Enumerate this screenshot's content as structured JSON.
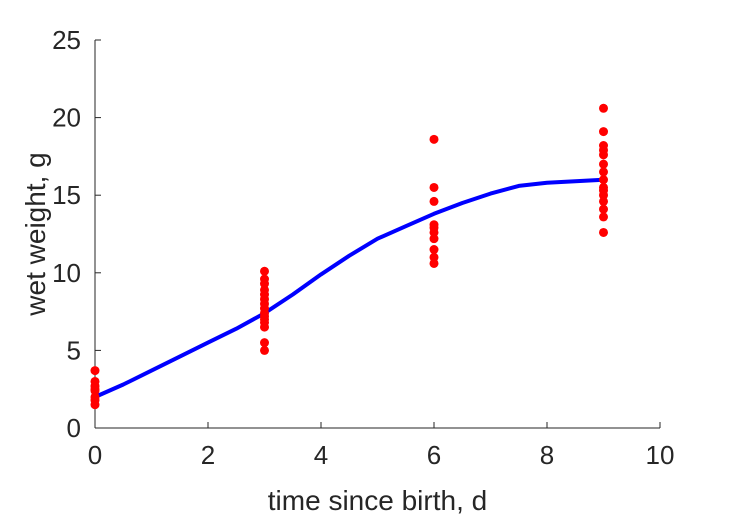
{
  "chart_data": {
    "type": "scatter",
    "xlabel": "time since birth, d",
    "ylabel": "wet weight, g",
    "xlim": [
      0,
      10
    ],
    "ylim": [
      0,
      25
    ],
    "xticks": [
      0,
      2,
      4,
      6,
      8,
      10
    ],
    "yticks": [
      0,
      5,
      10,
      15,
      20,
      25
    ],
    "grid": false,
    "box": false,
    "series": [
      {
        "kind": "points",
        "color": "#ff0000",
        "x": [
          0,
          0,
          0,
          0,
          0,
          0,
          0,
          0,
          3,
          3,
          3,
          3,
          3,
          3,
          3,
          3,
          3,
          3,
          3,
          3,
          3,
          3,
          3,
          6,
          6,
          6,
          6,
          6,
          6,
          6,
          6,
          6,
          6,
          9,
          9,
          9,
          9,
          9,
          9,
          9,
          9,
          9,
          9,
          9,
          9,
          9,
          9,
          9
        ],
        "y": [
          3.7,
          3.0,
          2.7,
          2.5,
          2.4,
          2.0,
          1.8,
          1.5,
          10.1,
          9.6,
          8.9,
          8.6,
          8.3,
          8.0,
          7.7,
          7.4,
          7.2,
          7.0,
          6.8,
          6.5,
          5.5,
          5.0,
          9.3,
          18.6,
          15.5,
          14.6,
          13.1,
          12.6,
          12.2,
          11.5,
          11.0,
          10.6,
          12.9,
          20.6,
          19.1,
          18.2,
          17.6,
          17.0,
          16.5,
          16.0,
          15.5,
          15.0,
          14.6,
          14.1,
          13.6,
          12.6,
          17.9,
          15.3
        ]
      },
      {
        "kind": "line",
        "color": "#0000ff",
        "x": [
          0,
          0.5,
          1,
          1.5,
          2,
          2.5,
          3,
          3.5,
          4,
          4.5,
          5,
          5.5,
          6,
          6.5,
          7,
          7.5,
          8,
          8.5,
          9
        ],
        "y": [
          2.0,
          2.8,
          3.7,
          4.6,
          5.5,
          6.4,
          7.4,
          8.6,
          9.9,
          11.1,
          12.2,
          13.0,
          13.8,
          14.5,
          15.1,
          15.6,
          15.8,
          15.9,
          16.0
        ]
      }
    ]
  }
}
